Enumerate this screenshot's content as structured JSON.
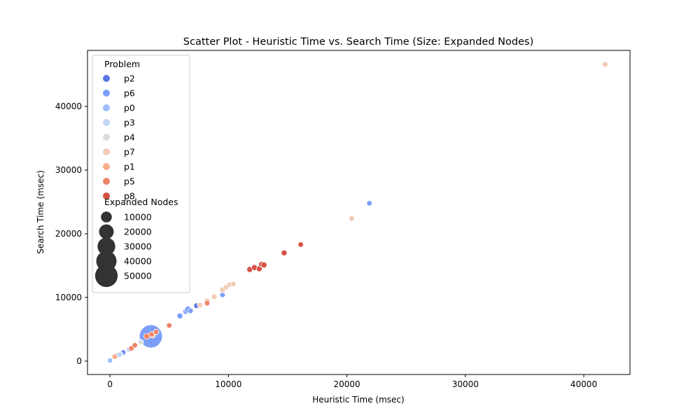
{
  "chart_data": {
    "type": "scatter",
    "title": "Scatter Plot - Heuristic Time vs. Search Time (Size: Expanded Nodes)",
    "xlabel": "Heuristic Time (msec)",
    "ylabel": "Search Time (msec)",
    "xlim": [
      -1900,
      43900
    ],
    "ylim": [
      -2100,
      48800
    ],
    "xticks": [
      0,
      10000,
      20000,
      30000,
      40000
    ],
    "yticks": [
      0,
      10000,
      20000,
      30000,
      40000
    ],
    "grid": false,
    "legend": {
      "placement": "top-left",
      "hue_title": "Problem",
      "size_title": "Expanded Nodes",
      "size_entries": [
        {
          "label": "10000",
          "value": 10000
        },
        {
          "label": "20000",
          "value": 20000
        },
        {
          "label": "30000",
          "value": 30000
        },
        {
          "label": "40000",
          "value": 40000
        },
        {
          "label": "50000",
          "value": 50000
        }
      ]
    },
    "series": [
      {
        "name": "p2",
        "color": "#5a78e4",
        "points": [
          {
            "x": 1100,
            "y": 1350,
            "s": 1000
          },
          {
            "x": 700,
            "y": 950,
            "s": 800
          },
          {
            "x": 7300,
            "y": 8700,
            "s": 1000
          }
        ]
      },
      {
        "name": "p6",
        "color": "#7b9ff9",
        "points": [
          {
            "x": 3450,
            "y": 3900,
            "s": 52000
          },
          {
            "x": 5900,
            "y": 7100,
            "s": 1500
          },
          {
            "x": 6400,
            "y": 7800,
            "s": 1500
          },
          {
            "x": 6600,
            "y": 8100,
            "s": 3000
          },
          {
            "x": 6800,
            "y": 7900,
            "s": 1000
          },
          {
            "x": 9500,
            "y": 10400,
            "s": 1000
          },
          {
            "x": 21900,
            "y": 24800,
            "s": 1000
          }
        ]
      },
      {
        "name": "p0",
        "color": "#9ebeff",
        "points": [
          {
            "x": 0,
            "y": 100,
            "s": 800
          },
          {
            "x": 900,
            "y": 1150,
            "s": 800
          }
        ]
      },
      {
        "name": "p3",
        "color": "#c0d4f5",
        "points": [
          {
            "x": 800,
            "y": 1000,
            "s": 800
          },
          {
            "x": 1600,
            "y": 1800,
            "s": 800
          }
        ]
      },
      {
        "name": "p4",
        "color": "#dddcdc",
        "points": [
          {
            "x": 2600,
            "y": 3000,
            "s": 1000
          }
        ]
      },
      {
        "name": "p7",
        "color": "#f2cbb7",
        "points": [
          {
            "x": 7600,
            "y": 8800,
            "s": 1000
          },
          {
            "x": 8200,
            "y": 9400,
            "s": 2000
          },
          {
            "x": 8800,
            "y": 10100,
            "s": 1000
          },
          {
            "x": 9500,
            "y": 11200,
            "s": 1500
          },
          {
            "x": 9800,
            "y": 11600,
            "s": 1000
          },
          {
            "x": 10100,
            "y": 12000,
            "s": 1000
          },
          {
            "x": 10400,
            "y": 12100,
            "s": 1000
          },
          {
            "x": 20400,
            "y": 22400,
            "s": 1000
          },
          {
            "x": 41800,
            "y": 46600,
            "s": 1000
          }
        ]
      },
      {
        "name": "p1",
        "color": "#f7ac8e",
        "points": [
          {
            "x": 400,
            "y": 700,
            "s": 1000
          },
          {
            "x": 3600,
            "y": 4100,
            "s": 1500
          }
        ]
      },
      {
        "name": "p5",
        "color": "#ee8468",
        "points": [
          {
            "x": 1800,
            "y": 2000,
            "s": 1000
          },
          {
            "x": 2100,
            "y": 2500,
            "s": 1000
          },
          {
            "x": 3100,
            "y": 3900,
            "s": 1500
          },
          {
            "x": 3500,
            "y": 4200,
            "s": 1000
          },
          {
            "x": 3900,
            "y": 4600,
            "s": 1000
          },
          {
            "x": 5000,
            "y": 5600,
            "s": 1000
          },
          {
            "x": 8200,
            "y": 9100,
            "s": 1000
          }
        ]
      },
      {
        "name": "p8",
        "color": "#d65244",
        "points": [
          {
            "x": 11800,
            "y": 14400,
            "s": 1500
          },
          {
            "x": 12200,
            "y": 14700,
            "s": 1500
          },
          {
            "x": 12600,
            "y": 14500,
            "s": 1500
          },
          {
            "x": 12800,
            "y": 15200,
            "s": 1500
          },
          {
            "x": 13000,
            "y": 15100,
            "s": 1500
          },
          {
            "x": 14700,
            "y": 17000,
            "s": 1500
          },
          {
            "x": 16100,
            "y": 18300,
            "s": 1000
          }
        ]
      }
    ]
  }
}
